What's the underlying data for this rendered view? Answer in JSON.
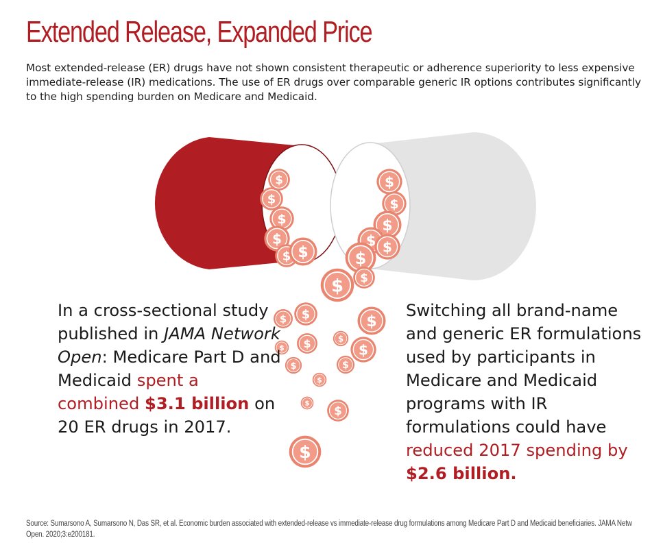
{
  "header": {
    "title": "Extended Release, Expanded Price",
    "subtitle": "Most extended-release (ER) drugs have not shown consistent therapeutic or adherence superiority to less expensive immediate-release (IR) medications. The use of ER drugs over comparable generic IR options contributes significantly to the high spending burden on Medicare and Medicaid."
  },
  "left_text": {
    "part1": "In a cross-sectional study published in ",
    "journal": "JAMA Network Open",
    "part2": ": Medicare Part D and Medicaid ",
    "highlight1": "spent a combined ",
    "highlight_amount": "$3.1 billion",
    "part3": " on 20 ER drugs in 2017."
  },
  "right_text": {
    "part1": "Switching all brand-name and generic ER formulations used by participants in Medicare and Medicaid programs with IR formulations could have ",
    "highlight1": "reduced 2017 spending by ",
    "highlight_amount": "$2.6 billion."
  },
  "source": "Source: Sumarsono A, Sumarsono N, Das SR, et al. Economic burden associated with extended-release vs immediate-release drug formulations among Medicare Part D and Medicaid beneficiaries. JAMA Netw Open. 2020;3:e200181.",
  "colors": {
    "accent_red": "#b01e23",
    "capsule_gray": "#e3e3e3",
    "coin": "#ee8876"
  },
  "icons": {
    "capsule": "capsule-icon",
    "coin": "dollar-coin-icon"
  }
}
